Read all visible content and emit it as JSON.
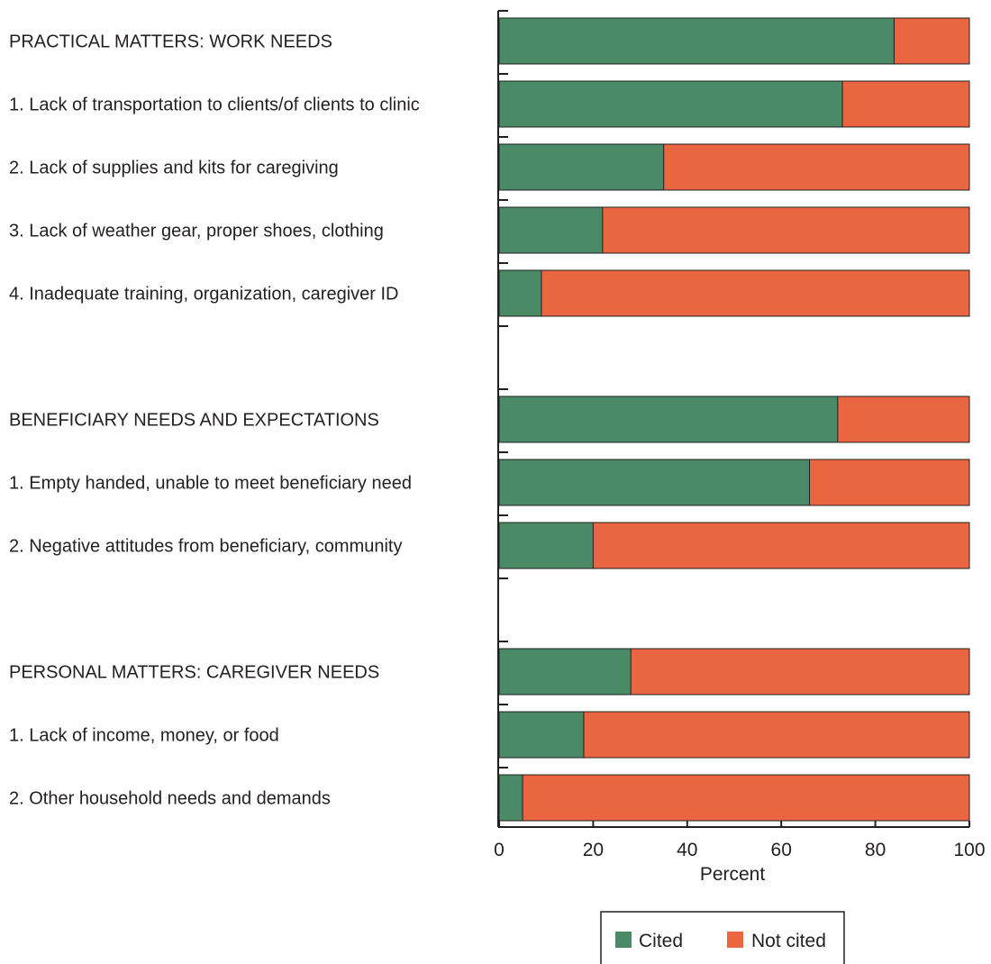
{
  "chart_data": {
    "type": "bar",
    "stacked": true,
    "orientation": "horizontal",
    "categories": [
      "PRACTICAL MATTERS: WORK NEEDS",
      "1. Lack of transportation to clients/of clients to clinic",
      "2. Lack of supplies and kits for caregiving",
      "3. Lack of weather gear, proper shoes, clothing",
      "4. Inadequate training, organization, caregiver ID",
      "",
      "BENEFICIARY NEEDS AND EXPECTATIONS",
      "1. Empty handed, unable to meet beneficiary need",
      "2. Negative attitudes from beneficiary, community",
      "",
      "PERSONAL MATTERS: CAREGIVER NEEDS",
      "1. Lack of income, money, or food",
      "2. Other household needs and demands"
    ],
    "series": [
      {
        "name": "Cited",
        "color": "#4a8a66",
        "values": [
          84,
          73,
          35,
          22,
          9,
          null,
          72,
          66,
          20,
          null,
          28,
          18,
          5
        ]
      },
      {
        "name": "Not cited",
        "color": "#e96640",
        "values": [
          16,
          27,
          65,
          78,
          91,
          null,
          28,
          34,
          80,
          null,
          72,
          82,
          95
        ]
      }
    ],
    "xlabel": "Percent",
    "xlim": [
      0,
      100
    ],
    "xticks": [
      "0",
      "20",
      "40",
      "60",
      "80",
      "100"
    ],
    "legend_position": "bottom",
    "grid": false
  }
}
